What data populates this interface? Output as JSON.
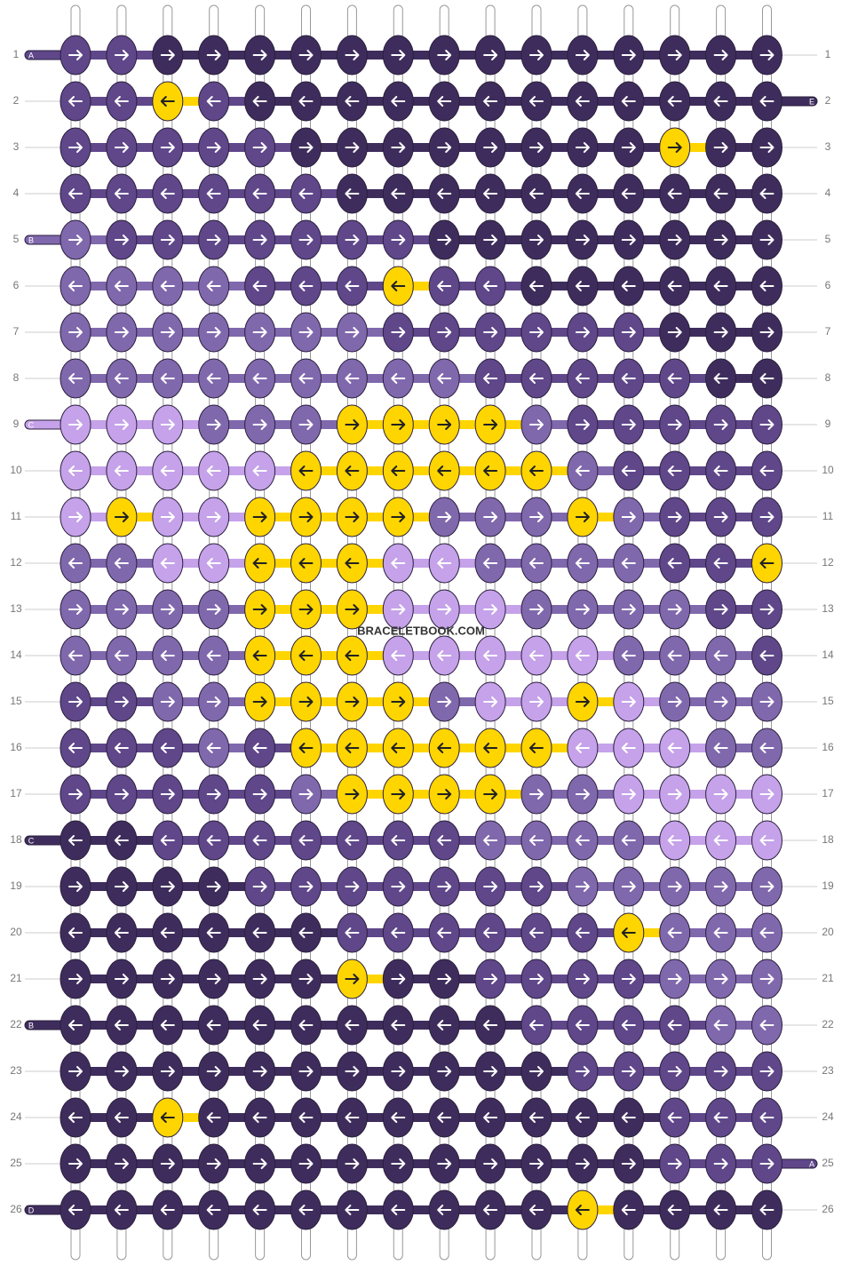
{
  "watermark": "BRACELETBOOK.COM",
  "row_numbers": [
    1,
    2,
    3,
    4,
    5,
    6,
    7,
    8,
    9,
    10,
    11,
    12,
    13,
    14,
    15,
    16,
    17,
    18,
    19,
    20,
    21,
    22,
    23,
    24,
    25,
    26
  ],
  "left_strings": [
    {
      "row": 1,
      "label": "A"
    },
    {
      "row": 5,
      "label": "B"
    },
    {
      "row": 9,
      "label": "C"
    },
    {
      "row": 18,
      "label": "C"
    },
    {
      "row": 22,
      "label": "B"
    },
    {
      "row": 26,
      "label": "D"
    }
  ],
  "right_strings": [
    {
      "row": 2,
      "label": "E"
    },
    {
      "row": 25,
      "label": "A"
    }
  ]
}
